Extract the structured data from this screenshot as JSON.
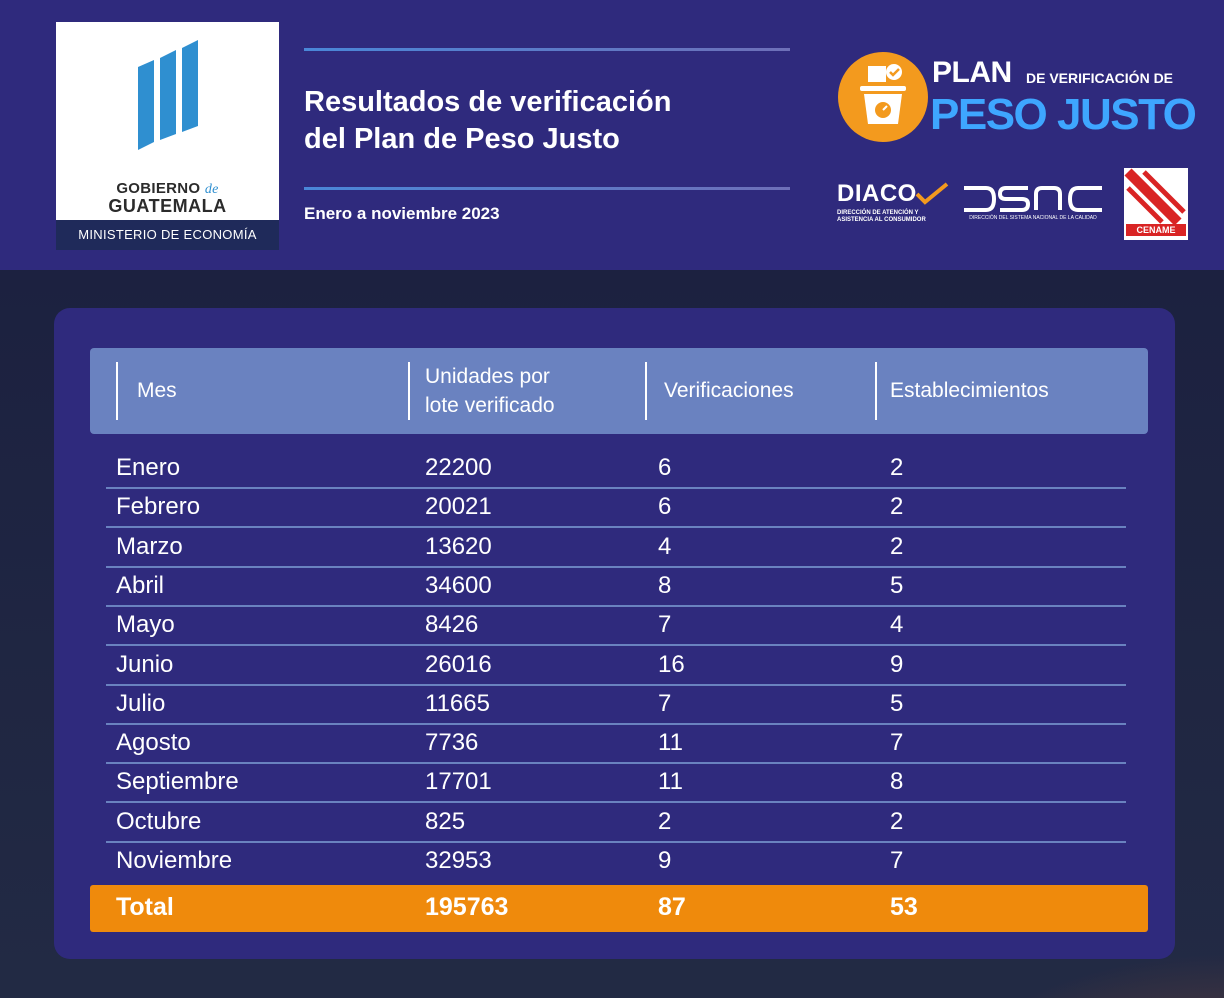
{
  "header": {
    "government": {
      "line1": "GOBIERNO",
      "line1_de": "de",
      "line2": "GUATEMALA",
      "ministry": "MINISTERIO DE ECONOMÍA"
    },
    "title_line1": "Resultados de verificación",
    "title_line2": "del Plan de Peso Justo",
    "subtitle": "Enero a noviembre 2023",
    "plan_logo": {
      "plan": "PLAN",
      "de_verificacion": "DE VERIFICACIÓN DE",
      "peso_justo": "PESO JUSTO"
    },
    "partners": {
      "diaco": "DIACO",
      "diaco_sub_1": "DIRECCIÓN DE ATENCIÓN Y",
      "diaco_sub_2": "ASISTENCIA AL CONSUMIDOR",
      "dsnc_sub": "DIRECCIÓN DEL SISTEMA NACIONAL DE LA CALIDAD",
      "cename": "CENAME"
    }
  },
  "table": {
    "columns": [
      "Mes",
      "Unidades por lote verificado",
      "Verificaciones",
      "Establecimientos"
    ],
    "col2_line1": "Unidades por",
    "col2_line2": "lote verificado",
    "rows": [
      {
        "mes": "Enero",
        "unidades": "22200",
        "verificaciones": "6",
        "establecimientos": "2"
      },
      {
        "mes": "Febrero",
        "unidades": "20021",
        "verificaciones": "6",
        "establecimientos": "2"
      },
      {
        "mes": "Marzo",
        "unidades": "13620",
        "verificaciones": "4",
        "establecimientos": "2"
      },
      {
        "mes": "Abril",
        "unidades": "34600",
        "verificaciones": "8",
        "establecimientos": "5"
      },
      {
        "mes": "Mayo",
        "unidades": "8426",
        "verificaciones": "7",
        "establecimientos": "4"
      },
      {
        "mes": "Junio",
        "unidades": "26016",
        "verificaciones": "16",
        "establecimientos": "9"
      },
      {
        "mes": "Julio",
        "unidades": "11665",
        "verificaciones": "7",
        "establecimientos": "5"
      },
      {
        "mes": "Agosto",
        "unidades": "7736",
        "verificaciones": "11",
        "establecimientos": "7"
      },
      {
        "mes": "Septiembre",
        "unidades": "17701",
        "verificaciones": "11",
        "establecimientos": "8"
      },
      {
        "mes": "Octubre",
        "unidades": "825",
        "verificaciones": "2",
        "establecimientos": "2"
      },
      {
        "mes": "Noviembre",
        "unidades": "32953",
        "verificaciones": "9",
        "establecimientos": "7"
      }
    ],
    "total": {
      "label": "Total",
      "unidades": "195763",
      "verificaciones": "87",
      "establecimientos": "53"
    }
  },
  "colors": {
    "header_bg": "#2f2a7d",
    "header_row": "#6a82c0",
    "total_row": "#ef8a0c",
    "accent_blue": "#3ea6ff"
  }
}
